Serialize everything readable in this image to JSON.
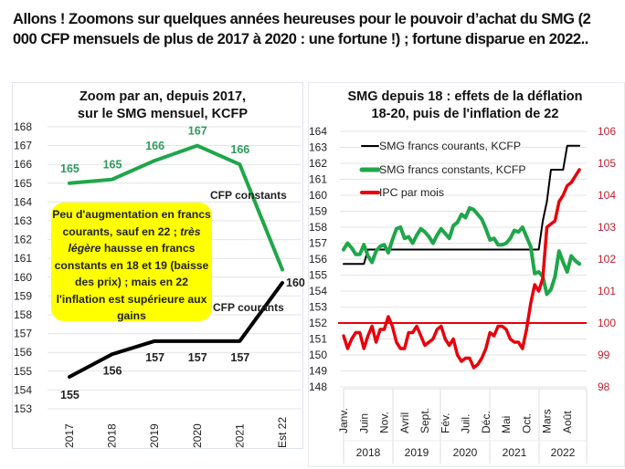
{
  "headline": "Allons ! Zoomons sur quelques années heureuses pour le pouvoir d’achat du SMG (2 000 CFP mensuels de plus de 2017 à 2020 : une fortune !) ; fortune disparue en 2022..",
  "colors": {
    "green": "#1fa64a",
    "green_label": "#2e9a5c",
    "black": "#000000",
    "red": "#e8000b",
    "red_axis": "#c0202c",
    "callout": "#ffff00",
    "grid": "#e4e4e4"
  },
  "chart_data": [
    {
      "type": "line",
      "title": "Zoom par an, depuis 2017, sur le SMG mensuel, KCFP",
      "title_lines": [
        "Zoom par an, depuis 2017,",
        "sur le SMG mensuel, KCFP"
      ],
      "categories": [
        "2017",
        "2018",
        "2019",
        "2020",
        "2021",
        "Est 22"
      ],
      "ylim": [
        153,
        168
      ],
      "yticks": [
        153,
        154,
        155,
        156,
        157,
        158,
        159,
        160,
        161,
        162,
        163,
        164,
        165,
        166,
        167,
        168
      ],
      "grid": true,
      "series": [
        {
          "name": "CFP constants",
          "values": [
            165.0,
            165.2,
            166.2,
            167.0,
            166.0,
            160.4
          ],
          "labels": [
            "165",
            "165",
            "166",
            "167",
            "166",
            null
          ],
          "color": "#1fa64a"
        },
        {
          "name": "CFP courants",
          "values": [
            154.7,
            155.9,
            156.6,
            156.6,
            156.6,
            159.7
          ],
          "labels": [
            "155",
            "156",
            "157",
            "157",
            "157",
            "160"
          ],
          "color": "#000000"
        }
      ],
      "annotations": {
        "constant_label": "CFP constants",
        "current_label": "CFP courants",
        "callout": {
          "part1": "Peu d'augmentation en francs courants, sauf en 22 ; ",
          "part2_italic": "très légère",
          "part3": " hausse en francs constants  en 18 et 19 (baisse des prix) ; mais en 22 l'inflation est supérieure aux gains"
        }
      }
    },
    {
      "type": "line",
      "title": "SMG depuis 18 : effets de la déflation 18-20, puis de l'inflation de 22",
      "title_lines": [
        "SMG depuis 18 : effets de la déflation",
        "18-20, puis de l'inflation de 22"
      ],
      "ylim": [
        148,
        164
      ],
      "yticks": [
        148,
        149,
        150,
        151,
        152,
        153,
        154,
        155,
        156,
        157,
        158,
        159,
        160,
        161,
        162,
        163,
        164
      ],
      "y2lim": [
        98,
        106
      ],
      "y2ticks": [
        98,
        99,
        100,
        101,
        102,
        103,
        104,
        105,
        106
      ],
      "grid": true,
      "x_month_labels": [
        {
          "label": "Janv.",
          "index": 0
        },
        {
          "label": "Juin",
          "index": 5
        },
        {
          "label": "Nov.",
          "index": 10
        },
        {
          "label": "Avril",
          "index": 15
        },
        {
          "label": "Sept.",
          "index": 20
        },
        {
          "label": "Fév.",
          "index": 25
        },
        {
          "label": "Juil.",
          "index": 30
        },
        {
          "label": "Déc.",
          "index": 35
        },
        {
          "label": "Mai",
          "index": 40
        },
        {
          "label": "Oct.",
          "index": 45
        },
        {
          "label": "Mars",
          "index": 50
        },
        {
          "label": "Août",
          "index": 55
        }
      ],
      "x_years": [
        "2018",
        "2019",
        "2020",
        "2021",
        "2022"
      ],
      "reference_line": {
        "axis": "right",
        "value": 100
      },
      "legend": {
        "placement": "top-left",
        "entries": [
          "SMG francs courants, KCFP",
          "SMG francs constants, KCFP",
          "IPC par mois"
        ]
      },
      "series": [
        {
          "name": "SMG francs courants, KCFP",
          "axis": "left",
          "color": "#000000",
          "values": [
            155.7,
            155.7,
            155.7,
            155.7,
            155.7,
            155.7,
            156.6,
            156.6,
            156.6,
            156.6,
            156.6,
            156.6,
            156.6,
            156.6,
            156.6,
            156.6,
            156.6,
            156.6,
            156.6,
            156.6,
            156.6,
            156.6,
            156.6,
            156.6,
            156.6,
            156.6,
            156.6,
            156.6,
            156.6,
            156.6,
            156.6,
            156.6,
            156.6,
            156.6,
            156.6,
            156.6,
            156.6,
            156.6,
            156.6,
            156.6,
            156.6,
            156.6,
            156.6,
            156.6,
            156.6,
            156.6,
            156.6,
            156.6,
            156.6,
            158.4,
            159.6,
            161.6,
            161.6,
            161.6,
            161.6,
            163.1,
            163.1,
            163.1,
            163.1
          ]
        },
        {
          "name": "SMG francs constants, KCFP",
          "axis": "left",
          "color": "#1fa64a",
          "values": [
            156.6,
            157.0,
            156.7,
            156.3,
            156.3,
            156.9,
            156.2,
            155.8,
            156.5,
            156.8,
            156.9,
            156.4,
            157.2,
            157.9,
            158.0,
            157.3,
            157.4,
            157.0,
            157.5,
            157.9,
            157.7,
            157.4,
            157.0,
            157.5,
            157.9,
            157.6,
            157.3,
            158.1,
            158.3,
            158.8,
            158.6,
            159.2,
            159.1,
            158.8,
            158.5,
            157.9,
            157.2,
            157.3,
            156.9,
            156.9,
            157.0,
            157.3,
            157.8,
            157.7,
            158.0,
            157.4,
            156.8,
            155.1,
            155.2,
            154.9,
            153.8,
            154.1,
            154.9,
            156.5,
            155.8,
            155.2,
            156.2,
            155.9,
            155.7
          ]
        },
        {
          "name": "IPC par mois",
          "axis": "right",
          "color": "#e8000b",
          "values": [
            99.6,
            99.2,
            99.5,
            99.7,
            99.7,
            99.2,
            99.6,
            99.9,
            99.4,
            99.8,
            99.8,
            100.2,
            99.9,
            99.4,
            99.2,
            99.2,
            99.7,
            99.7,
            99.9,
            99.6,
            99.3,
            99.4,
            99.5,
            99.8,
            99.9,
            99.5,
            99.3,
            99.5,
            99.0,
            98.8,
            98.9,
            98.9,
            98.6,
            98.7,
            98.9,
            99.2,
            99.7,
            99.6,
            99.9,
            99.9,
            99.8,
            99.5,
            99.4,
            99.4,
            99.2,
            99.8,
            100.6,
            101.2,
            101.0,
            101.4,
            103.0,
            103.1,
            103.2,
            103.8,
            104.0,
            104.3,
            104.4,
            104.6,
            104.8
          ]
        }
      ]
    }
  ]
}
